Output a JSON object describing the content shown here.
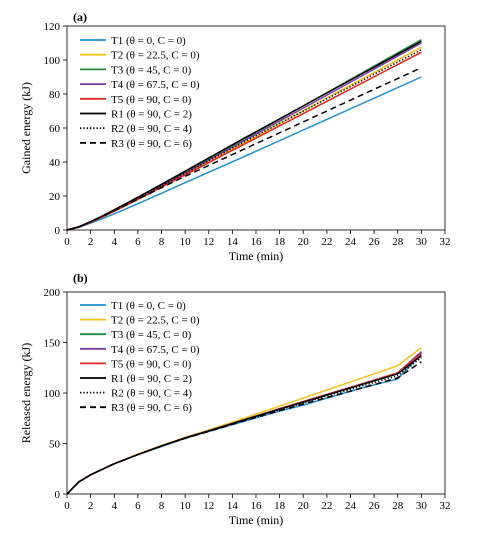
{
  "chart_data": [
    {
      "type": "line",
      "panel_label": "(a)",
      "xlabel": "Time (min)",
      "ylabel": "Gained energy (kJ)",
      "xlim": [
        0,
        32
      ],
      "ylim": [
        0,
        120
      ],
      "xticks": [
        0,
        2,
        4,
        6,
        8,
        10,
        12,
        14,
        16,
        18,
        20,
        22,
        24,
        26,
        28,
        30,
        32
      ],
      "yticks": [
        0,
        20,
        40,
        60,
        80,
        100,
        120
      ],
      "legend_position": "top-left",
      "grid": false,
      "series": [
        {
          "name": "T1 (θ = 0, C = 0)",
          "color": "#1f8fd6",
          "dash": "solid",
          "x": [
            0,
            1,
            2,
            3,
            4,
            6,
            8,
            10,
            15,
            20,
            25,
            30
          ],
          "y": [
            0,
            1.5,
            4,
            6.7,
            9.5,
            15.5,
            21.6,
            27.8,
            43.2,
            58.8,
            74.4,
            90
          ]
        },
        {
          "name": "T2 (θ = 22.5, C = 0)",
          "color": "#f2c21b",
          "dash": "solid",
          "x": [
            0,
            1,
            2,
            3,
            4,
            6,
            8,
            10,
            15,
            20,
            25,
            30
          ],
          "y": [
            0,
            1.7,
            4.5,
            7.7,
            11,
            18,
            25.2,
            32.6,
            51.3,
            70.1,
            88.9,
            107.5
          ]
        },
        {
          "name": "T3 (θ = 45, C = 0)",
          "color": "#1e8c3c",
          "dash": "solid",
          "x": [
            0,
            1,
            2,
            3,
            4,
            6,
            8,
            10,
            15,
            20,
            25,
            30
          ],
          "y": [
            0,
            1.8,
            4.7,
            8,
            11.5,
            18.8,
            26.3,
            34,
            53.5,
            73,
            92.5,
            112
          ]
        },
        {
          "name": "T4 (θ = 67.5, C = 0)",
          "color": "#7b3fa0",
          "dash": "solid",
          "x": [
            0,
            1,
            2,
            3,
            4,
            6,
            8,
            10,
            15,
            20,
            25,
            30
          ],
          "y": [
            0,
            1.7,
            4.6,
            7.9,
            11.3,
            18.5,
            25.9,
            33.5,
            52.6,
            71.7,
            90.8,
            110
          ]
        },
        {
          "name": "T5 (θ = 90, C = 0)",
          "color": "#e0271f",
          "dash": "solid",
          "x": [
            0,
            1,
            2,
            3,
            4,
            6,
            8,
            10,
            15,
            20,
            25,
            30
          ],
          "y": [
            0,
            1.7,
            4.5,
            7.7,
            11,
            18,
            25.2,
            32.4,
            50.5,
            68.5,
            86.5,
            104.5
          ]
        },
        {
          "name": "R1 (θ = 90, C = 2)",
          "color": "#000000",
          "dash": "solid",
          "x": [
            0,
            1,
            2,
            3,
            4,
            6,
            8,
            10,
            15,
            20,
            25,
            30
          ],
          "y": [
            0,
            1.9,
            4.9,
            8.3,
            11.9,
            19.3,
            26.9,
            34.6,
            54,
            73,
            92,
            111
          ]
        },
        {
          "name": "R2 (θ = 90, C = 4)",
          "color": "#000000",
          "dash": "dotted",
          "x": [
            0,
            1,
            2,
            3,
            4,
            6,
            8,
            10,
            15,
            20,
            25,
            30
          ],
          "y": [
            0,
            1.8,
            4.8,
            8.1,
            11.5,
            18.7,
            26,
            33.4,
            51.8,
            70,
            88,
            106
          ]
        },
        {
          "name": "R3 (θ = 90, C = 6)",
          "color": "#000000",
          "dash": "dashed",
          "x": [
            0,
            1,
            2,
            3,
            4,
            6,
            8,
            10,
            15,
            20,
            25,
            30
          ],
          "y": [
            0,
            1.9,
            4.9,
            8.1,
            11.4,
            18.2,
            24.9,
            31.6,
            47.6,
            63.6,
            79.6,
            95.5
          ]
        }
      ]
    },
    {
      "type": "line",
      "panel_label": "(b)",
      "xlabel": "Time (min)",
      "ylabel": "Released energy (kJ)",
      "xlim": [
        0,
        32
      ],
      "ylim": [
        0,
        200
      ],
      "xticks": [
        0,
        2,
        4,
        6,
        8,
        10,
        12,
        14,
        16,
        18,
        20,
        22,
        24,
        26,
        28,
        30,
        32
      ],
      "yticks": [
        0,
        50,
        100,
        150,
        200
      ],
      "legend_position": "top-left",
      "grid": false,
      "series": [
        {
          "name": "T1 (θ = 0, C = 0)",
          "color": "#1f8fd6",
          "dash": "solid",
          "x": [
            0,
            1,
            2,
            4,
            6,
            8,
            10,
            12,
            15,
            18,
            20,
            22,
            25,
            28,
            30
          ],
          "y": [
            0,
            12,
            19,
            30,
            39,
            47,
            55,
            62,
            72,
            82,
            88,
            95,
            105,
            114,
            139
          ]
        },
        {
          "name": "T2 (θ = 22.5, C = 0)",
          "color": "#f2c21b",
          "dash": "solid",
          "x": [
            0,
            1,
            2,
            4,
            6,
            8,
            10,
            12,
            15,
            18,
            20,
            22,
            25,
            28,
            30
          ],
          "y": [
            0,
            12,
            19,
            30,
            39.5,
            48,
            56,
            63.5,
            75,
            87,
            95,
            103,
            115,
            127,
            145
          ]
        },
        {
          "name": "T3 (θ = 45, C = 0)",
          "color": "#1e8c3c",
          "dash": "solid",
          "x": [
            0,
            1,
            2,
            4,
            6,
            8,
            10,
            12,
            15,
            18,
            20,
            22,
            25,
            28,
            30
          ],
          "y": [
            0,
            12,
            19,
            30,
            39,
            47.5,
            55.5,
            62.5,
            73.5,
            84.5,
            91.5,
            98.5,
            109,
            120,
            140
          ]
        },
        {
          "name": "T4 (θ = 67.5, C = 0)",
          "color": "#7b3fa0",
          "dash": "solid",
          "x": [
            0,
            1,
            2,
            4,
            6,
            8,
            10,
            12,
            15,
            18,
            20,
            22,
            25,
            28,
            30
          ],
          "y": [
            0,
            12,
            19,
            30,
            39,
            47.5,
            55.5,
            62.5,
            73.5,
            84.5,
            91.5,
            98.5,
            109,
            120,
            141
          ]
        },
        {
          "name": "T5 (θ = 90, C = 0)",
          "color": "#e0271f",
          "dash": "solid",
          "x": [
            0,
            1,
            2,
            4,
            6,
            8,
            10,
            12,
            15,
            18,
            20,
            22,
            25,
            28,
            30
          ],
          "y": [
            0,
            12,
            19,
            30,
            39,
            47.5,
            55.5,
            62.5,
            73.5,
            84.5,
            91.5,
            98.5,
            109,
            120,
            139
          ]
        },
        {
          "name": "R1 (θ = 90, C = 2)",
          "color": "#000000",
          "dash": "solid",
          "x": [
            0,
            1,
            2,
            4,
            6,
            8,
            10,
            12,
            15,
            18,
            20,
            22,
            25,
            28,
            30
          ],
          "y": [
            0,
            12,
            19,
            30,
            39,
            47.5,
            55.5,
            62.5,
            73.5,
            84,
            91,
            98,
            108.5,
            119,
            137
          ]
        },
        {
          "name": "R2 (θ = 90, C = 4)",
          "color": "#000000",
          "dash": "dotted",
          "x": [
            0,
            1,
            2,
            4,
            6,
            8,
            10,
            12,
            15,
            18,
            20,
            22,
            25,
            28,
            30
          ],
          "y": [
            0,
            12,
            19,
            30,
            39,
            47.5,
            55.5,
            62.5,
            73,
            83.5,
            90,
            97,
            107,
            117,
            135
          ]
        },
        {
          "name": "R3 (θ = 90, C = 6)",
          "color": "#000000",
          "dash": "dashed",
          "x": [
            0,
            1,
            2,
            4,
            6,
            8,
            10,
            12,
            15,
            18,
            20,
            22,
            25,
            28,
            30
          ],
          "y": [
            0,
            12,
            19,
            30,
            39,
            47.5,
            55,
            62,
            72.5,
            82.5,
            89,
            95.5,
            105,
            115,
            131
          ]
        }
      ]
    }
  ]
}
